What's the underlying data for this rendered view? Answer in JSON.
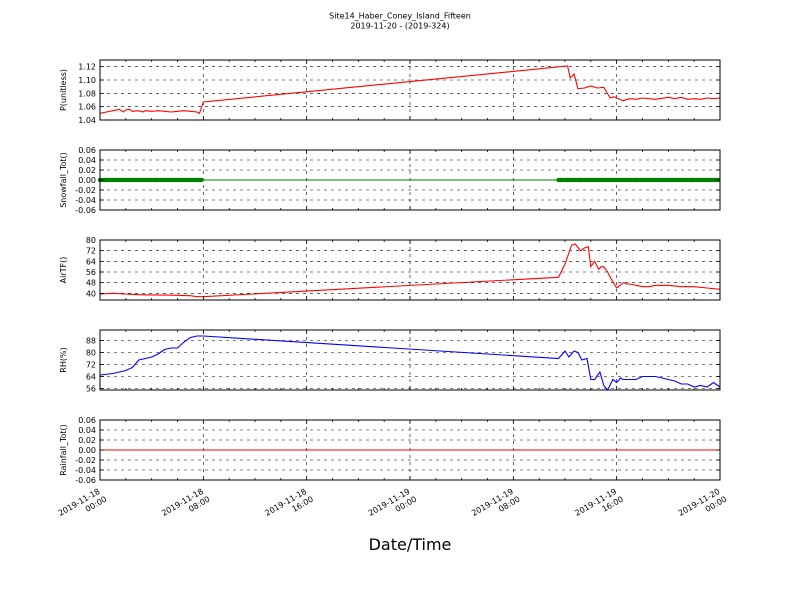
{
  "figure": {
    "title": "Site14_Haber_Coney_Island_Fifteen",
    "subtitle": "2019-11-20 - (2019-324)",
    "xlabel": "Date/Time",
    "x_ticks": [
      {
        "t": 0,
        "line1": "2019-11-18",
        "line2": "00:00"
      },
      {
        "t": 8,
        "line1": "2019-11-18",
        "line2": "08:00"
      },
      {
        "t": 16,
        "line1": "2019-11-18",
        "line2": "16:00"
      },
      {
        "t": 24,
        "line1": "2019-11-19",
        "line2": "00:00"
      },
      {
        "t": 32,
        "line1": "2019-11-19",
        "line2": "08:00"
      },
      {
        "t": 40,
        "line1": "2019-11-19",
        "line2": "16:00"
      },
      {
        "t": 48,
        "line1": "2019-11-20",
        "line2": "00:00"
      }
    ]
  },
  "chart_data": [
    {
      "type": "line",
      "ylabel": "P(unitless)",
      "ylim": [
        1.04,
        1.13
      ],
      "yticks": [
        "1.04",
        "1.06",
        "1.08",
        "1.10",
        "1.12"
      ],
      "yvals": [
        1.04,
        1.06,
        1.08,
        1.1,
        1.12
      ],
      "grid": true,
      "color": "#ff0000",
      "xlim": [
        0,
        48
      ],
      "series": [
        {
          "x": [
            0,
            0.5,
            1,
            1.5,
            1.8,
            2,
            2.3,
            2.5,
            3,
            3.3,
            3.5,
            4,
            4.5,
            5,
            5.5,
            6,
            6.5,
            7,
            7.5,
            7.7,
            8,
            36.2,
            36.4,
            36.7,
            37,
            37.5,
            38,
            38.5,
            39,
            39.5,
            39.8,
            40,
            40.5,
            41,
            41.5,
            42,
            43,
            44,
            44.5,
            45,
            45.5,
            46,
            46.5,
            47,
            47.5,
            48
          ],
          "y": [
            1.05,
            1.052,
            1.054,
            1.056,
            1.052,
            1.055,
            1.056,
            1.053,
            1.054,
            1.052,
            1.054,
            1.053,
            1.054,
            1.053,
            1.052,
            1.053,
            1.054,
            1.053,
            1.052,
            1.05,
            1.067,
            1.121,
            1.103,
            1.109,
            1.087,
            1.088,
            1.091,
            1.088,
            1.089,
            1.073,
            1.075,
            1.073,
            1.069,
            1.072,
            1.071,
            1.073,
            1.071,
            1.074,
            1.072,
            1.074,
            1.071,
            1.072,
            1.071,
            1.073,
            1.072,
            1.073
          ]
        }
      ]
    },
    {
      "type": "line",
      "ylabel": "Snowfall_Tot()",
      "ylim": [
        -0.06,
        0.06
      ],
      "yticks": [
        "0.06",
        "0.04",
        "0.02",
        "0.00",
        "-0.02",
        "-0.04",
        "-0.06"
      ],
      "yvals": [
        0.06,
        0.04,
        0.02,
        0.0,
        -0.02,
        -0.04,
        -0.06
      ],
      "grid": true,
      "color": "#008000",
      "xlim": [
        0,
        48
      ],
      "markers_x_ranges": [
        [
          0,
          8
        ],
        [
          35.5,
          48
        ]
      ],
      "series": [
        {
          "x": [
            0,
            48
          ],
          "y": [
            0,
            0
          ]
        }
      ]
    },
    {
      "type": "line",
      "ylabel": "AirTF()",
      "ylim": [
        35,
        80
      ],
      "yticks": [
        "80",
        "72",
        "64",
        "56",
        "48",
        "40"
      ],
      "yvals": [
        80,
        72,
        64,
        56,
        48,
        40
      ],
      "grid": true,
      "color": "#ff0000",
      "xlim": [
        0,
        48
      ],
      "series": [
        {
          "x": [
            0,
            1,
            2,
            3,
            4,
            5,
            6,
            7,
            7.5,
            8,
            35.5,
            36,
            36.5,
            36.8,
            37.2,
            37.5,
            37.8,
            38,
            38.3,
            38.6,
            38.8,
            39,
            39.3,
            39.5,
            40,
            40.5,
            40.8,
            41,
            41.5,
            42,
            42.5,
            43,
            44,
            45,
            46,
            47,
            48
          ],
          "y": [
            39.5,
            40,
            39.5,
            39,
            38.8,
            38.7,
            38.5,
            38.2,
            37.5,
            37.5,
            52,
            62,
            76,
            77,
            72,
            74,
            75,
            60,
            64,
            58,
            60,
            60,
            56,
            52,
            44,
            48,
            47,
            47,
            46,
            45,
            45,
            46,
            46,
            45,
            45,
            44,
            43
          ]
        }
      ]
    },
    {
      "type": "line",
      "ylabel": "RH(%)",
      "ylim": [
        55,
        95
      ],
      "yticks": [
        "88",
        "80",
        "72",
        "64",
        "56"
      ],
      "yvals": [
        88,
        80,
        72,
        64,
        56
      ],
      "grid": true,
      "color": "#0000ff",
      "xlim": [
        0,
        48
      ],
      "series": [
        {
          "x": [
            0,
            1,
            1.5,
            2,
            2.5,
            3,
            3.5,
            4,
            4.5,
            5,
            5.5,
            6,
            6.5,
            7,
            7.5,
            8,
            35.5,
            36,
            36.3,
            36.7,
            37,
            37.3,
            37.7,
            38,
            38.3,
            38.7,
            39,
            39.3,
            39.7,
            40,
            40.3,
            40.5,
            40.8,
            41,
            41.5,
            42,
            42.5,
            43,
            43.5,
            44,
            44.5,
            45,
            45.5,
            46,
            46.5,
            47,
            47.5,
            48
          ],
          "y": [
            65,
            66,
            67,
            68,
            70,
            75,
            76,
            77,
            79,
            82,
            83,
            83,
            87,
            90,
            91,
            91,
            76,
            81,
            77,
            81,
            80,
            75,
            76,
            62,
            62,
            67,
            58,
            55,
            62,
            60,
            63,
            62,
            62,
            62,
            62,
            64,
            64,
            64,
            63,
            62,
            61,
            59,
            59,
            57,
            58,
            57,
            60,
            57
          ]
        }
      ]
    },
    {
      "type": "line",
      "ylabel": "Rainfall_Tot()",
      "ylim": [
        -0.06,
        0.06
      ],
      "yticks": [
        "0.06",
        "0.04",
        "0.02",
        "0.00",
        "-0.02",
        "-0.04",
        "-0.06"
      ],
      "yvals": [
        0.06,
        0.04,
        0.02,
        0.0,
        -0.02,
        -0.04,
        -0.06
      ],
      "grid": true,
      "color": "#ff0000",
      "xlim": [
        0,
        48
      ],
      "series": [
        {
          "x": [
            0,
            48
          ],
          "y": [
            0,
            0
          ]
        }
      ]
    }
  ]
}
